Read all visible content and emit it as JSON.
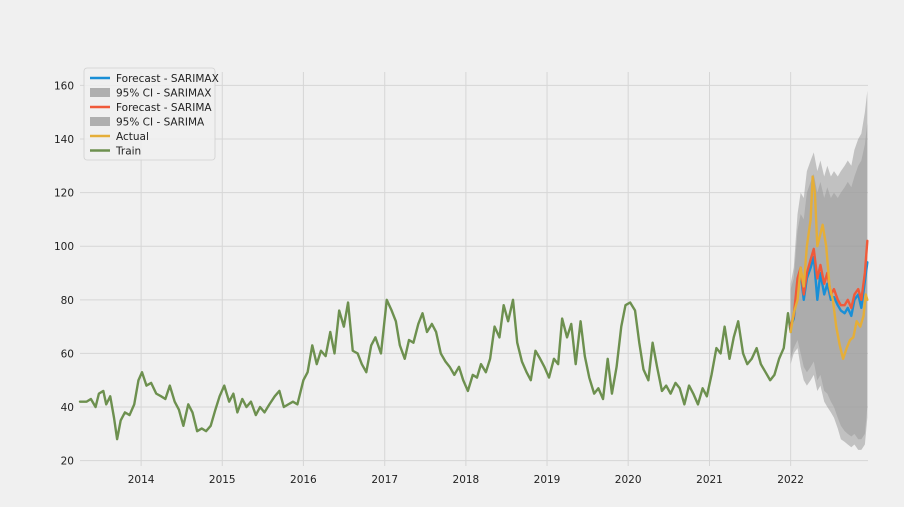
{
  "chart_data": {
    "type": "line",
    "title": "",
    "xlabel": "",
    "ylabel": "",
    "xlim": [
      "2013-04-01",
      "2022-12-15"
    ],
    "ylim": [
      18,
      165
    ],
    "grid": true,
    "legend_placement": "top-left",
    "x_ticks": [
      "2014",
      "2015",
      "2016",
      "2017",
      "2018",
      "2019",
      "2020",
      "2021",
      "2022"
    ],
    "y_ticks": [
      20,
      40,
      60,
      80,
      100,
      120,
      140,
      160
    ],
    "colors": {
      "forecast_sarimax": "#1a8fd6",
      "ci_sarimax": "#9a9a9a",
      "forecast_sarima": "#f05a3a",
      "ci_sarima": "#9a9a9a",
      "actual": "#e5ae38",
      "train": "#6d904f",
      "background": "#f0f0f0",
      "grid": "#d6d6d6"
    },
    "legend": [
      {
        "label": "Forecast - SARIMAX",
        "kind": "line",
        "series": "forecast_sarimax"
      },
      {
        "label": "95% CI - SARIMAX",
        "kind": "patch",
        "series": "ci_sarimax"
      },
      {
        "label": "Forecast - SARIMA",
        "kind": "line",
        "series": "forecast_sarima"
      },
      {
        "label": "95% CI - SARIMA",
        "kind": "patch",
        "series": "ci_sarima"
      },
      {
        "label": "Actual",
        "kind": "line",
        "series": "actual"
      },
      {
        "label": "Train",
        "kind": "line",
        "series": "train"
      }
    ],
    "train": {
      "x": [
        "2013-04-01",
        "2013-05-01",
        "2013-05-20",
        "2013-06-10",
        "2013-06-25",
        "2013-07-15",
        "2013-07-28",
        "2013-08-15",
        "2013-09-01",
        "2013-09-15",
        "2013-10-01",
        "2013-10-20",
        "2013-11-10",
        "2013-12-01",
        "2013-12-20",
        "2014-01-05",
        "2014-01-25",
        "2014-02-15",
        "2014-03-10",
        "2014-04-01",
        "2014-04-20",
        "2014-05-10",
        "2014-06-01",
        "2014-06-20",
        "2014-07-10",
        "2014-08-01",
        "2014-08-20",
        "2014-09-10",
        "2014-10-01",
        "2014-10-20",
        "2014-11-10",
        "2014-12-01",
        "2014-12-20",
        "2015-01-10",
        "2015-02-01",
        "2015-02-20",
        "2015-03-10",
        "2015-04-01",
        "2015-04-20",
        "2015-05-10",
        "2015-06-01",
        "2015-06-20",
        "2015-07-10",
        "2015-08-01",
        "2015-08-25",
        "2015-09-15",
        "2015-10-05",
        "2015-10-25",
        "2015-11-15",
        "2015-12-05",
        "2016-01-01",
        "2016-01-20",
        "2016-02-10",
        "2016-03-01",
        "2016-03-20",
        "2016-04-10",
        "2016-05-01",
        "2016-05-20",
        "2016-06-10",
        "2016-07-01",
        "2016-07-20",
        "2016-08-10",
        "2016-09-01",
        "2016-09-20",
        "2016-10-10",
        "2016-11-01",
        "2016-11-20",
        "2016-12-15",
        "2017-01-10",
        "2017-02-01",
        "2017-02-20",
        "2017-03-10",
        "2017-04-01",
        "2017-04-20",
        "2017-05-10",
        "2017-06-01",
        "2017-06-20",
        "2017-07-10",
        "2017-08-01",
        "2017-08-20",
        "2017-09-10",
        "2017-10-01",
        "2017-10-20",
        "2017-11-10",
        "2017-12-01",
        "2017-12-20",
        "2018-01-10",
        "2018-02-01",
        "2018-02-20",
        "2018-03-10",
        "2018-04-01",
        "2018-04-20",
        "2018-05-10",
        "2018-06-01",
        "2018-06-20",
        "2018-07-10",
        "2018-08-01",
        "2018-08-20",
        "2018-09-10",
        "2018-10-01",
        "2018-10-20",
        "2018-11-10",
        "2018-12-01",
        "2018-12-20",
        "2019-01-10",
        "2019-02-01",
        "2019-02-20",
        "2019-03-10",
        "2019-04-01",
        "2019-04-20",
        "2019-05-10",
        "2019-06-01",
        "2019-06-20",
        "2019-07-10",
        "2019-08-01",
        "2019-08-20",
        "2019-09-10",
        "2019-10-01",
        "2019-10-20",
        "2019-11-10",
        "2019-12-01",
        "2019-12-20",
        "2020-01-10",
        "2020-02-01",
        "2020-02-20",
        "2020-03-10",
        "2020-04-01",
        "2020-04-20",
        "2020-05-10",
        "2020-06-01",
        "2020-06-20",
        "2020-07-10",
        "2020-08-01",
        "2020-08-20",
        "2020-09-10",
        "2020-10-01",
        "2020-10-20",
        "2020-11-10",
        "2020-12-01",
        "2020-12-20",
        "2021-01-10",
        "2021-02-01",
        "2021-02-20",
        "2021-03-10",
        "2021-04-01",
        "2021-04-20",
        "2021-05-10",
        "2021-06-01",
        "2021-06-20",
        "2021-07-10",
        "2021-08-01",
        "2021-08-20",
        "2021-09-10",
        "2021-10-01",
        "2021-10-20",
        "2021-11-10",
        "2021-12-01",
        "2021-12-20",
        "2022-01-01"
      ],
      "y": [
        42,
        42,
        43,
        40,
        45,
        46,
        41,
        44,
        36,
        28,
        35,
        38,
        37,
        41,
        50,
        53,
        48,
        49,
        45,
        44,
        43,
        48,
        42,
        39,
        33,
        41,
        38,
        31,
        32,
        31,
        33,
        39,
        44,
        48,
        42,
        45,
        38,
        43,
        40,
        42,
        37,
        40,
        38,
        41,
        44,
        46,
        40,
        41,
        42,
        41,
        50,
        53,
        63,
        56,
        61,
        59,
        68,
        60,
        76,
        70,
        79,
        61,
        60,
        56,
        53,
        63,
        66,
        60,
        80,
        76,
        72,
        63,
        58,
        65,
        64,
        71,
        75,
        68,
        71,
        68,
        60,
        57,
        55,
        52,
        55,
        50,
        46,
        52,
        51,
        56,
        53,
        58,
        70,
        66,
        78,
        72,
        80,
        64,
        57,
        53,
        50,
        61,
        58,
        55,
        51,
        58,
        56,
        73,
        66,
        71,
        56,
        72,
        59,
        51,
        45,
        47,
        43,
        58,
        45,
        55,
        70,
        78,
        79,
        76,
        64,
        54,
        50,
        64,
        55,
        46,
        48,
        45,
        49,
        47,
        41,
        48,
        45,
        41,
        47,
        44,
        52,
        62,
        60,
        70,
        58,
        66,
        72,
        60,
        56,
        58,
        62,
        56,
        53,
        50,
        52,
        58,
        62,
        75,
        68
      ]
    },
    "actual": {
      "x": [
        "2022-01-01",
        "2022-01-15",
        "2022-02-01",
        "2022-02-15",
        "2022-03-01",
        "2022-03-15",
        "2022-04-01",
        "2022-04-10",
        "2022-04-20",
        "2022-05-01",
        "2022-05-10",
        "2022-05-25",
        "2022-06-10",
        "2022-06-25",
        "2022-07-10",
        "2022-07-25",
        "2022-08-10",
        "2022-08-25",
        "2022-09-10",
        "2022-09-25",
        "2022-10-10",
        "2022-10-25",
        "2022-11-10",
        "2022-11-25",
        "2022-12-05",
        "2022-12-12"
      ],
      "y": [
        68,
        75,
        80,
        92,
        85,
        100,
        110,
        126,
        120,
        100,
        103,
        108,
        100,
        85,
        80,
        70,
        63,
        58,
        62,
        65,
        66,
        72,
        70,
        74,
        82,
        80
      ]
    },
    "forecast_sarima": {
      "x": [
        "2022-01-01",
        "2022-01-15",
        "2022-02-01",
        "2022-02-15",
        "2022-03-01",
        "2022-03-15",
        "2022-04-01",
        "2022-04-15",
        "2022-05-01",
        "2022-05-15",
        "2022-06-01",
        "2022-06-15",
        "2022-07-01",
        "2022-07-15",
        "2022-08-01",
        "2022-08-15",
        "2022-09-01",
        "2022-09-15",
        "2022-10-01",
        "2022-10-15",
        "2022-11-01",
        "2022-11-15",
        "2022-12-01",
        "2022-12-12"
      ],
      "y": [
        70,
        74,
        88,
        92,
        82,
        90,
        95,
        99,
        88,
        93,
        86,
        90,
        82,
        84,
        80,
        78,
        78,
        80,
        77,
        82,
        84,
        80,
        90,
        102
      ]
    },
    "forecast_sarimax": {
      "x": [
        "2022-01-01",
        "2022-01-15",
        "2022-02-01",
        "2022-02-15",
        "2022-03-01",
        "2022-03-15",
        "2022-04-01",
        "2022-04-15",
        "2022-05-01",
        "2022-05-15",
        "2022-06-01",
        "2022-06-15",
        "2022-07-01",
        "2022-07-15",
        "2022-08-01",
        "2022-08-15",
        "2022-09-01",
        "2022-09-15",
        "2022-10-01",
        "2022-10-15",
        "2022-11-01",
        "2022-11-15",
        "2022-12-01",
        "2022-12-12"
      ],
      "y": [
        70,
        73,
        86,
        90,
        80,
        88,
        92,
        96,
        80,
        90,
        82,
        86,
        80,
        81,
        78,
        76,
        75,
        77,
        74,
        80,
        82,
        77,
        87,
        94
      ]
    },
    "ci_sarima": {
      "x": [
        "2022-01-01",
        "2022-01-15",
        "2022-02-01",
        "2022-02-15",
        "2022-03-01",
        "2022-03-15",
        "2022-04-01",
        "2022-04-15",
        "2022-05-01",
        "2022-05-15",
        "2022-06-01",
        "2022-06-15",
        "2022-07-01",
        "2022-07-15",
        "2022-08-01",
        "2022-08-15",
        "2022-09-01",
        "2022-09-15",
        "2022-10-01",
        "2022-10-15",
        "2022-11-01",
        "2022-11-15",
        "2022-12-01",
        "2022-12-12"
      ],
      "lower": [
        56,
        60,
        62,
        55,
        50,
        48,
        50,
        52,
        46,
        48,
        42,
        40,
        38,
        36,
        32,
        28,
        27,
        26,
        25,
        26,
        24,
        24,
        26,
        36
      ],
      "upper": [
        86,
        92,
        112,
        120,
        118,
        128,
        132,
        135,
        128,
        132,
        126,
        130,
        126,
        128,
        126,
        128,
        130,
        132,
        130,
        136,
        140,
        142,
        150,
        158
      ]
    },
    "ci_sarimax": {
      "x": [
        "2022-01-01",
        "2022-01-15",
        "2022-02-01",
        "2022-02-15",
        "2022-03-01",
        "2022-03-15",
        "2022-04-01",
        "2022-04-15",
        "2022-05-01",
        "2022-05-15",
        "2022-06-01",
        "2022-06-15",
        "2022-07-01",
        "2022-07-15",
        "2022-08-01",
        "2022-08-15",
        "2022-09-01",
        "2022-09-15",
        "2022-10-01",
        "2022-10-15",
        "2022-11-01",
        "2022-11-15",
        "2022-12-01",
        "2022-12-12"
      ],
      "lower": [
        58,
        62,
        65,
        60,
        55,
        53,
        55,
        57,
        50,
        52,
        46,
        45,
        42,
        40,
        36,
        33,
        31,
        30,
        29,
        30,
        28,
        28,
        30,
        40
      ],
      "upper": [
        84,
        88,
        106,
        112,
        110,
        120,
        124,
        127,
        120,
        124,
        118,
        122,
        118,
        120,
        118,
        120,
        122,
        124,
        122,
        126,
        130,
        132,
        138,
        146
      ]
    }
  }
}
